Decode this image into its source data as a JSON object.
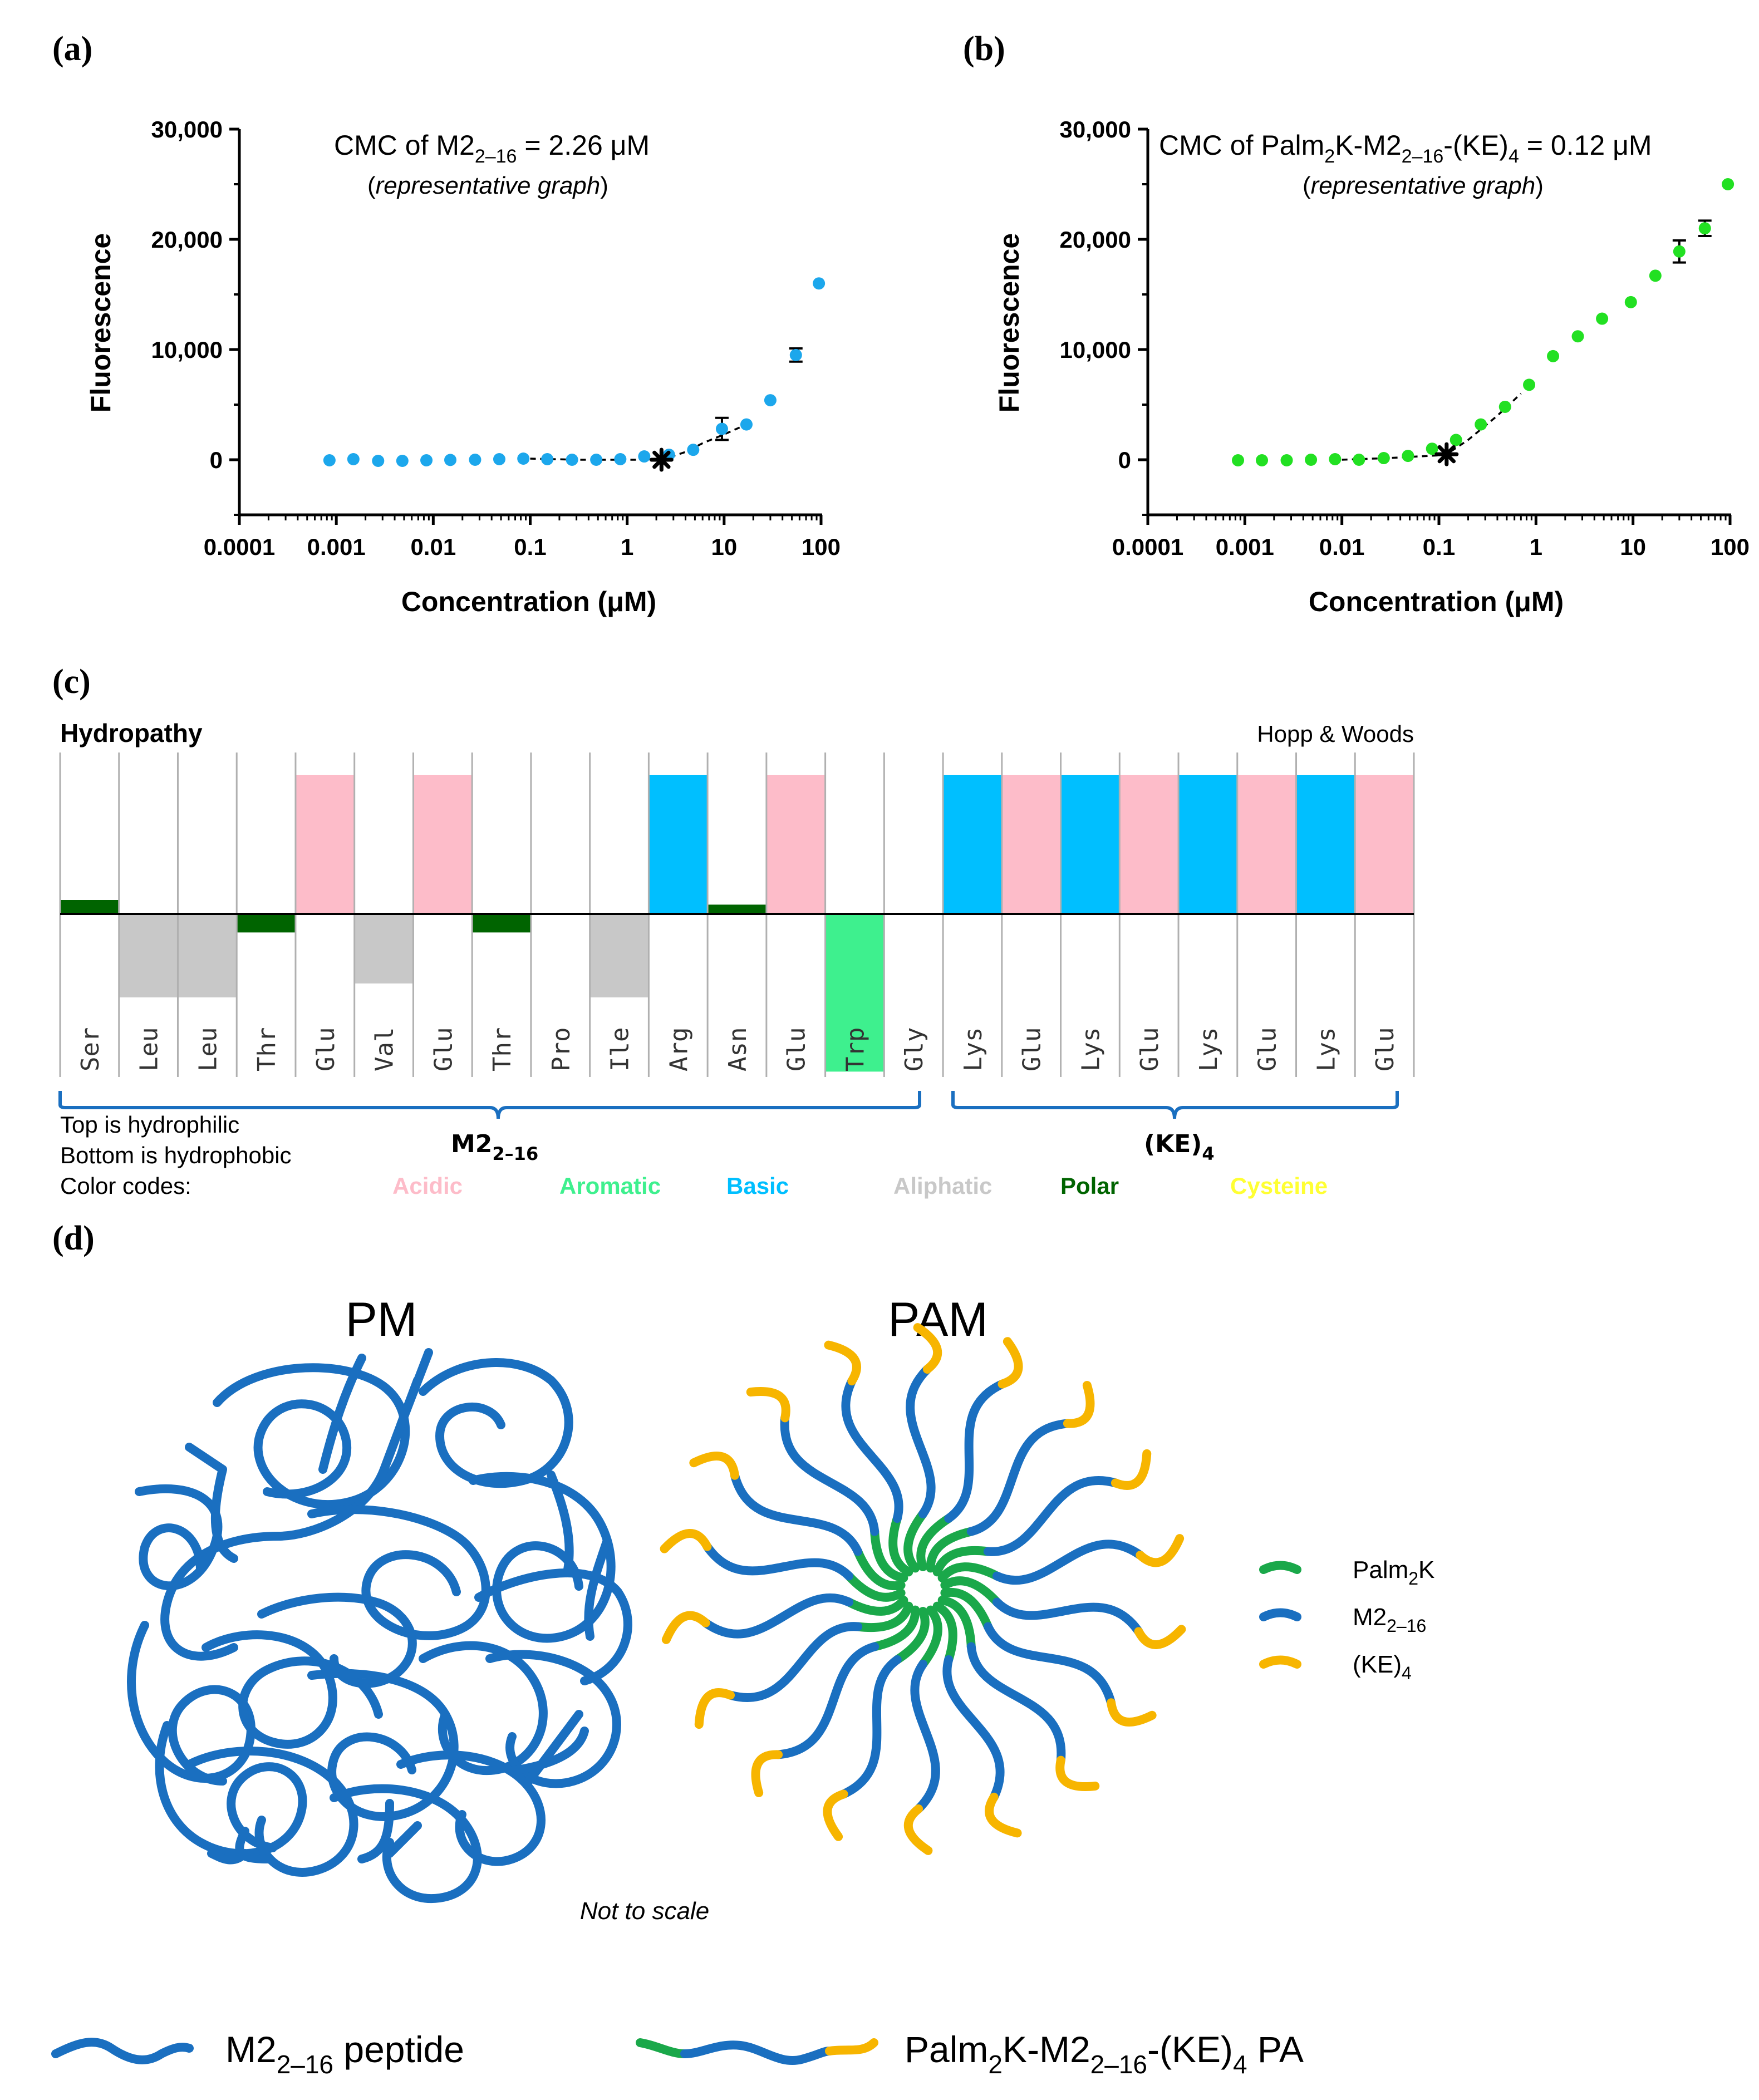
{
  "chart_data": [
    {
      "panel": "(a)",
      "type": "scatter",
      "title": "CMC of M2",
      "title_sub": "2–16",
      "title_rest": " = 2.26 μM",
      "subtitle_pre": "(",
      "subtitle_it": "representative graph",
      "subtitle_post": ")",
      "xlabel": "Concentration (μM)",
      "ylabel": "Fluorescence",
      "xscale": "log",
      "xlim": [
        0.0001,
        100
      ],
      "ylim": [
        -5000,
        30000
      ],
      "xticks": [
        "0.0001",
        "0.001",
        "0.01",
        "0.1",
        "1",
        "10",
        "100"
      ],
      "yticks": [
        "30,000",
        "20,000",
        "10,000",
        "0"
      ],
      "color": "#1ca7ec",
      "x": [
        0.00085,
        0.0015,
        0.0027,
        0.0048,
        0.0085,
        0.015,
        0.027,
        0.048,
        0.085,
        0.15,
        0.27,
        0.48,
        0.85,
        1.5,
        2.7,
        4.8,
        9.5,
        17,
        30,
        55,
        95
      ],
      "y": [
        -50,
        50,
        -100,
        -100,
        -50,
        -20,
        0,
        50,
        100,
        50,
        0,
        0,
        50,
        300,
        450,
        900,
        2800,
        3200,
        5400,
        9500,
        16000
      ],
      "errors": [
        0,
        0,
        0,
        0,
        0,
        0,
        0,
        0,
        0,
        0,
        0,
        0,
        0,
        0,
        0,
        0,
        1000,
        0,
        0,
        600,
        0
      ],
      "cmc_marker": {
        "x": 2.26,
        "y": 0
      },
      "fit_x": [
        0.1,
        0.3,
        1,
        2.26,
        4,
        6,
        10,
        17
      ],
      "fit_y": [
        100,
        0,
        0,
        0,
        700,
        1500,
        2300,
        3200
      ]
    },
    {
      "panel": "(b)",
      "type": "scatter",
      "title": "CMC of Palm",
      "title_sub": "2",
      "title_mid": "K-M2",
      "title_sub2": "2–16",
      "title_rest": "-(KE)",
      "title_sub3": "4",
      "title_end": " = 0.12 μM",
      "subtitle_pre": "(",
      "subtitle_it": "representative graph",
      "subtitle_post": ")",
      "xlabel": "Concentration (μM)",
      "ylabel": "Fluorescence",
      "xscale": "log",
      "xlim": [
        0.0001,
        100
      ],
      "ylim": [
        -5000,
        30000
      ],
      "xticks": [
        "0.0001",
        "0.001",
        "0.01",
        "0.1",
        "1",
        "10",
        "100"
      ],
      "yticks": [
        "30,000",
        "20,000",
        "10,000",
        "0"
      ],
      "color": "#22e022",
      "x": [
        0.00085,
        0.0015,
        0.0027,
        0.0048,
        0.0085,
        0.015,
        0.027,
        0.048,
        0.085,
        0.15,
        0.27,
        0.48,
        0.85,
        1.5,
        2.7,
        4.8,
        9.5,
        17,
        30,
        55,
        95
      ],
      "y": [
        -50,
        -50,
        -50,
        0,
        50,
        0,
        150,
        350,
        1000,
        1800,
        3200,
        4800,
        6800,
        9400,
        11200,
        12800,
        14300,
        16700,
        18900,
        21000,
        25000
      ],
      "errors": [
        0,
        0,
        0,
        0,
        0,
        0,
        0,
        0,
        0,
        0,
        0,
        0,
        0,
        0,
        0,
        0,
        0,
        0,
        1000,
        700,
        0
      ],
      "cmc_marker": {
        "x": 0.12,
        "y": 500
      },
      "fit_x": [
        0.01,
        0.03,
        0.1,
        0.12,
        0.2,
        0.4,
        0.7
      ],
      "fit_y": [
        0,
        150,
        400,
        500,
        1800,
        4000,
        6000
      ]
    }
  ],
  "panel_c": {
    "label": "(c)",
    "heading": "Hydropathy",
    "scale_name": "Hopp & Woods",
    "residues": [
      "Ser",
      "Leu",
      "Leu",
      "Thr",
      "Glu",
      "Val",
      "Glu",
      "Thr",
      "Pro",
      "Ile",
      "Arg",
      "Asn",
      "Glu",
      "Trp",
      "Gly",
      "Lys",
      "Glu",
      "Lys",
      "Glu",
      "Lys",
      "Glu",
      "Lys",
      "Glu"
    ],
    "residue_class": [
      "polar",
      "aliphatic",
      "aliphatic",
      "polar",
      "acidic",
      "aliphatic",
      "acidic",
      "polar",
      "none",
      "aliphatic",
      "basic",
      "polar",
      "acidic",
      "aromatic",
      "none",
      "basic",
      "acidic",
      "basic",
      "acidic",
      "basic",
      "acidic",
      "basic",
      "acidic"
    ],
    "hydropathy": [
      0.3,
      -1.8,
      -1.8,
      -0.4,
      3.0,
      -1.5,
      3.0,
      -0.4,
      0,
      -1.8,
      3.0,
      0.2,
      3.0,
      -3.4,
      0,
      3.0,
      3.0,
      3.0,
      3.0,
      3.0,
      3.0,
      3.0,
      3.0
    ],
    "class_colors": {
      "acidic": "#fdbcc9",
      "aromatic": "#3ef08e",
      "basic": "#00bfff",
      "aliphatic": "#c8c8c8",
      "polar": "#006400",
      "cysteine": "#ffff33",
      "none": "#ffffff"
    },
    "note1": "Top is hydrophilic",
    "note2": "Bottom is hydrophobic",
    "note3": "Color codes:",
    "group1": "M2",
    "group1_sub": "2–16",
    "group2": "(KE)",
    "group2_sub": "4",
    "legend": [
      {
        "label": "Acidic",
        "color": "#fdbcc9"
      },
      {
        "label": "Aromatic",
        "color": "#3ef08e"
      },
      {
        "label": "Basic",
        "color": "#00bfff"
      },
      {
        "label": "Aliphatic",
        "color": "#c8c8c8"
      },
      {
        "label": "Polar",
        "color": "#006400"
      },
      {
        "label": "Cysteine",
        "color": "#ffff33"
      }
    ]
  },
  "panel_d": {
    "label": "(d)",
    "title_left": "PM",
    "title_right": "PAM",
    "note": "Not to scale",
    "colors": {
      "palm": "#1aa84a",
      "m2": "#1a6fc0",
      "ke": "#f7b500"
    },
    "legend": [
      {
        "label": "Palm",
        "sub": "2",
        "rest": "K"
      },
      {
        "label": "M2",
        "sub": "2–16",
        "rest": ""
      },
      {
        "label": "(KE)",
        "sub": "4",
        "rest": ""
      }
    ],
    "bottom_left": "M2",
    "bottom_left_sub": "2–16",
    "bottom_left_rest": " peptide",
    "bottom_right": "Palm",
    "bottom_right_sub1": "2",
    "bottom_right_mid": "K-M2",
    "bottom_right_sub2": "2–16",
    "bottom_right_mid2": "-(KE)",
    "bottom_right_sub3": "4",
    "bottom_right_rest": " PA"
  }
}
